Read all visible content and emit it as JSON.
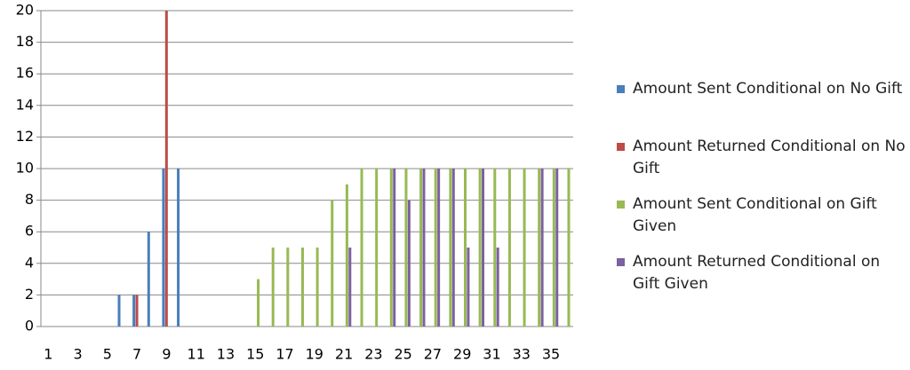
{
  "chart_data": {
    "type": "bar",
    "categories": [
      1,
      null,
      3,
      null,
      5,
      null,
      7,
      null,
      9,
      null,
      11,
      null,
      13,
      null,
      15,
      null,
      17,
      null,
      19,
      null,
      21,
      null,
      23,
      null,
      25,
      null,
      27,
      null,
      29,
      null,
      31,
      null,
      33,
      null,
      35,
      null
    ],
    "series": [
      {
        "name": "Amount Sent Conditional on No Gift",
        "color": "#4a7ebb",
        "values": [
          0,
          0,
          0,
          0,
          0,
          2,
          2,
          6,
          10,
          10,
          0,
          0,
          0,
          0,
          0,
          0,
          0,
          0,
          0,
          0,
          0,
          0,
          0,
          0,
          0,
          0,
          0,
          0,
          0,
          0,
          0,
          0,
          0,
          0,
          0,
          0
        ]
      },
      {
        "name": "Amount Returned Conditional on No Gift",
        "color": "#be4b48",
        "values": [
          0,
          0,
          0,
          0,
          0,
          0,
          2,
          0,
          20,
          0,
          0,
          0,
          0,
          0,
          0,
          0,
          0,
          0,
          0,
          0,
          0,
          0,
          0,
          0,
          0,
          0,
          0,
          0,
          0,
          0,
          0,
          0,
          0,
          0,
          0,
          0
        ]
      },
      {
        "name": "Amount Sent Conditional on Gift Given",
        "color": "#98b954",
        "values": [
          0,
          0,
          0,
          0,
          0,
          0,
          0,
          0,
          0,
          0,
          0,
          0,
          0,
          0,
          3,
          5,
          5,
          5,
          5,
          8,
          9,
          10,
          10,
          10,
          10,
          10,
          10,
          10,
          10,
          10,
          10,
          10,
          10,
          10,
          10,
          10
        ]
      },
      {
        "name": "Amount Returned Conditional on Gift Given",
        "color": "#7d60a0",
        "values": [
          0,
          0,
          0,
          0,
          0,
          0,
          0,
          0,
          0,
          0,
          0,
          0,
          0,
          0,
          0,
          0,
          0,
          0,
          0,
          0,
          5,
          0,
          0,
          10,
          8,
          10,
          10,
          10,
          5,
          10,
          5,
          0,
          0,
          10,
          10,
          0
        ]
      }
    ],
    "ylim": [
      0,
      20
    ],
    "yticks": [
      0,
      2,
      4,
      6,
      8,
      10,
      12,
      14,
      16,
      18,
      20
    ],
    "grid": true,
    "legend": "right"
  }
}
